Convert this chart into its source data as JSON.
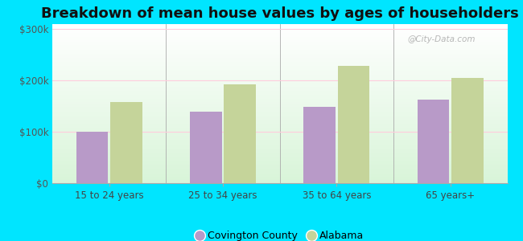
{
  "title": "Breakdown of mean house values by ages of householders",
  "categories": [
    "15 to 24 years",
    "25 to 34 years",
    "35 to 64 years",
    "65 years+"
  ],
  "covington_values": [
    100000,
    140000,
    148000,
    163000
  ],
  "alabama_values": [
    158000,
    193000,
    228000,
    205000
  ],
  "covington_color": "#b89ac8",
  "alabama_color": "#c5d49a",
  "ylim": [
    0,
    310000
  ],
  "yticks": [
    0,
    100000,
    200000,
    300000
  ],
  "ytick_labels": [
    "$0",
    "$100k",
    "$200k",
    "$300k"
  ],
  "legend_covington": "Covington County",
  "legend_alabama": "Alabama",
  "fig_background_color": "#00e5ff",
  "title_fontsize": 13,
  "watermark": "@City-Data.com",
  "bar_width": 0.28
}
